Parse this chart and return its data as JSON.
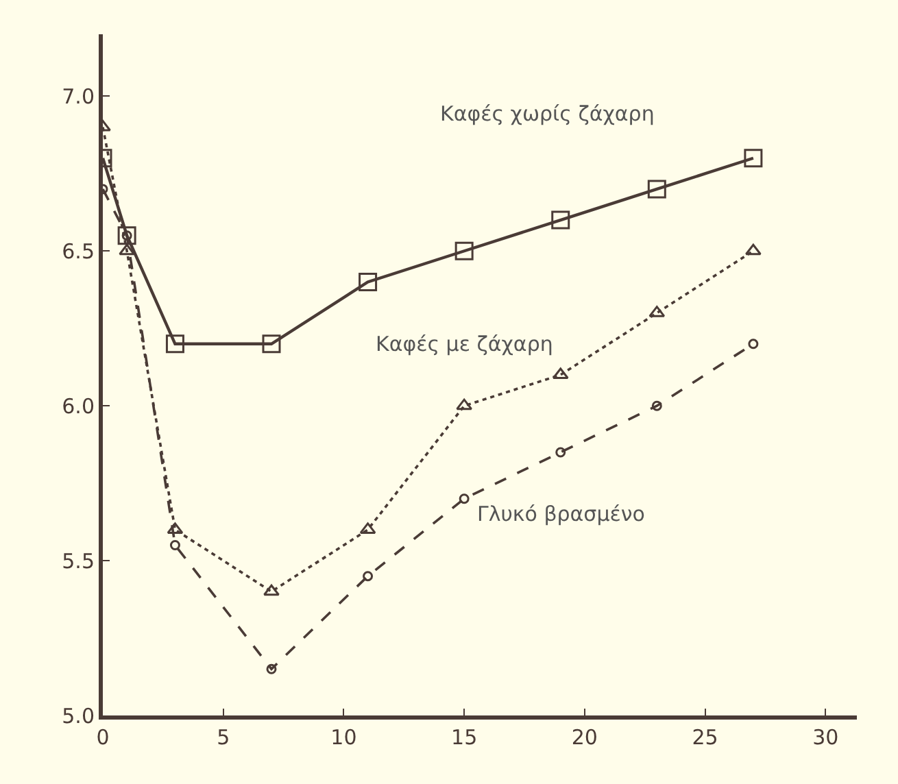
{
  "chart_data": {
    "type": "line",
    "x": [
      0,
      1,
      3,
      7,
      11,
      15,
      19,
      23,
      27
    ],
    "series": [
      {
        "name": "Καφές χωρίς ζάχαρη",
        "color": "#4a3b36",
        "marker": "square",
        "line_style": "solid",
        "values": [
          6.8,
          6.55,
          6.2,
          6.2,
          6.4,
          6.5,
          6.6,
          6.7,
          6.8
        ]
      },
      {
        "name": "Καφές με ζάχαρη",
        "color": "#4a3b36",
        "marker": "triangle",
        "line_style": "dotted",
        "values": [
          6.9,
          6.5,
          5.6,
          5.4,
          5.6,
          6.0,
          6.1,
          6.3,
          6.5
        ]
      },
      {
        "name": "Γλυκό βρασμένο",
        "color": "#4a3b36",
        "marker": "circle",
        "line_style": "dashed",
        "values": [
          6.7,
          6.55,
          5.55,
          5.15,
          5.45,
          5.7,
          5.85,
          6.0,
          6.2
        ]
      }
    ],
    "xlim": [
      0,
      31.3
    ],
    "ylim": [
      5.0,
      7.2
    ],
    "xticks": [
      0,
      5,
      10,
      15,
      20,
      25,
      30
    ],
    "yticks": [
      {
        "value": 5.0,
        "label": "5.0"
      },
      {
        "value": 5.5,
        "label": "5.5"
      },
      {
        "value": 6.0,
        "label": "6.0"
      },
      {
        "value": 6.5,
        "label": "6.5"
      },
      {
        "value": 7.0,
        "label": "7.0"
      }
    ],
    "grid": false,
    "legend": false
  }
}
